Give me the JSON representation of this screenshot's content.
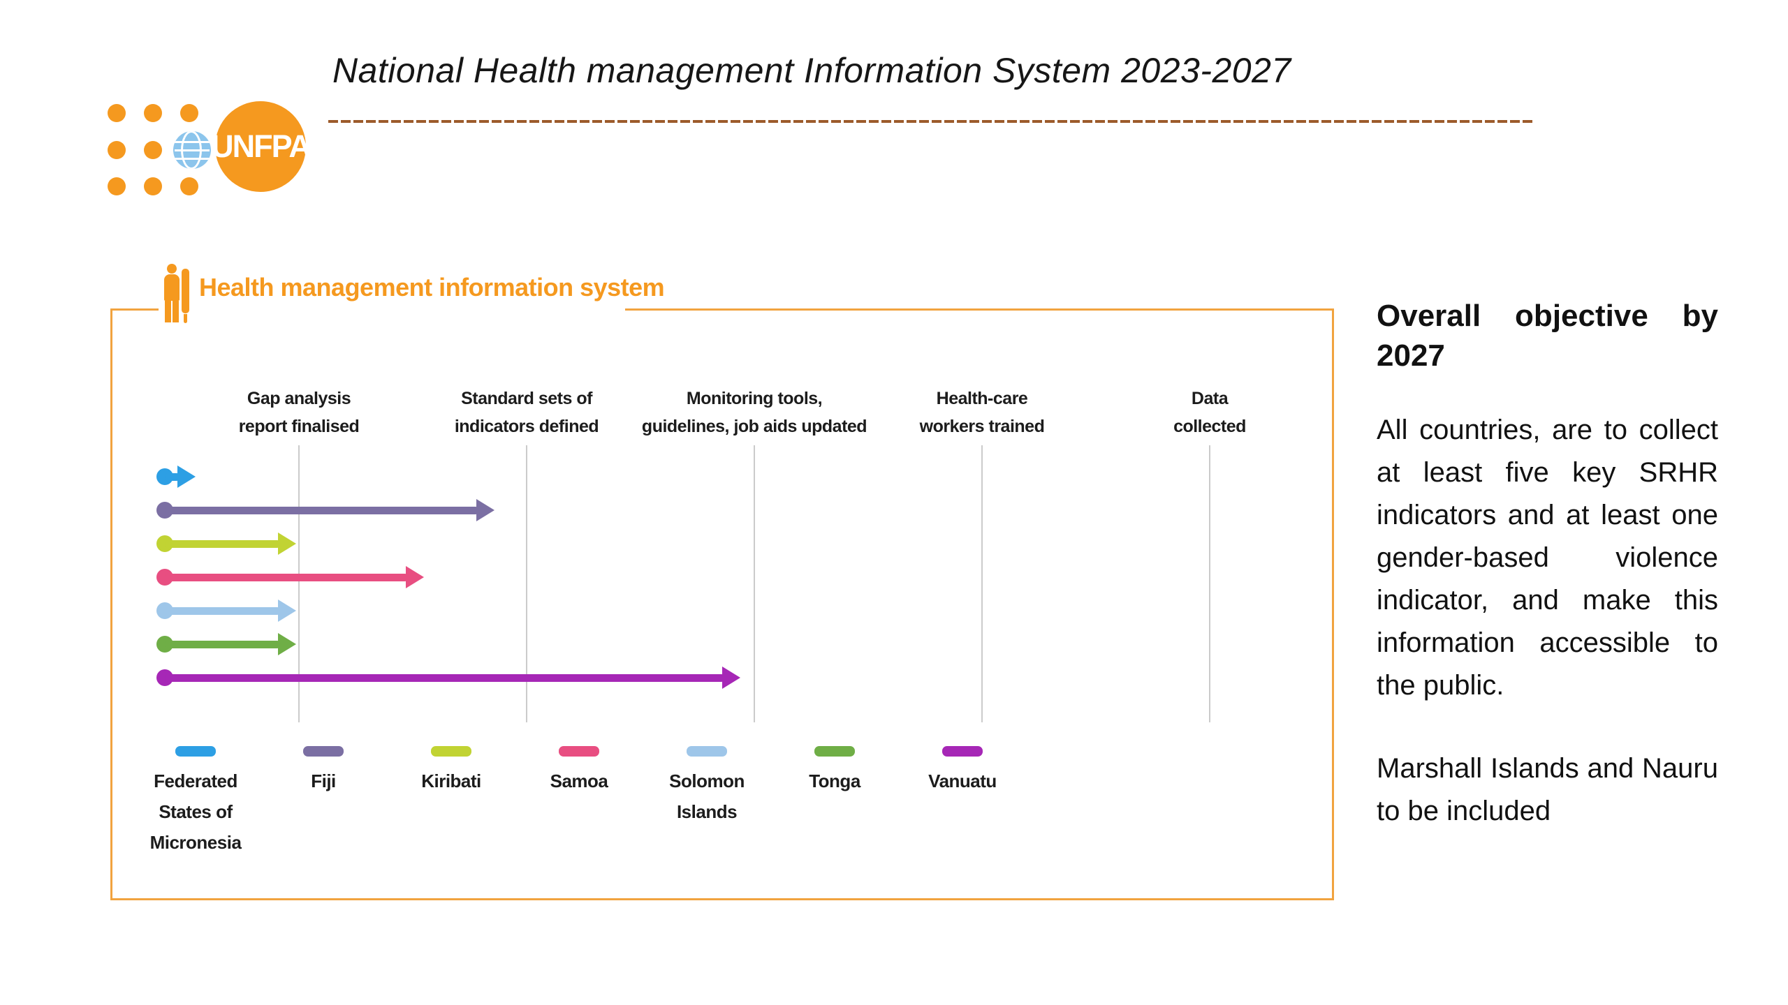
{
  "slide": {
    "title": "National Health management Information System 2023-2027"
  },
  "logo": {
    "text": "UNFPA"
  },
  "chart_data": {
    "type": "timeline-arrows",
    "title": "Health management information system",
    "milestones": [
      "Gap analysis\nreport finalised",
      "Standard sets of\nindicators defined",
      "Monitoring tools,\nguidelines, job aids updated",
      "Health-care\nworkers trained",
      "Data\ncollected"
    ],
    "series": [
      {
        "name": "Federated States of Micronesia",
        "color": "#2D9FE4",
        "progress": 0.23
      },
      {
        "name": "Fiji",
        "color": "#7B6FA3",
        "progress": 1.86
      },
      {
        "name": "Kiribati",
        "color": "#C1D333",
        "progress": 0.98
      },
      {
        "name": "Samoa",
        "color": "#E84E81",
        "progress": 1.55
      },
      {
        "name": "Solomon Islands",
        "color": "#9EC6E9",
        "progress": 0.98
      },
      {
        "name": "Tonga",
        "color": "#6FAE46",
        "progress": 0.98
      },
      {
        "name": "Vanuatu",
        "color": "#A627B6",
        "progress": 2.94
      }
    ],
    "x_axis": {
      "min": 0,
      "max": 5,
      "unit": "milestones reached"
    },
    "grid": true,
    "legend_position": "bottom",
    "accent_color": "#F5991F"
  },
  "objective": {
    "heading": "Overall objective by 2027",
    "body": "All countries, are to collect at least five key SRHR indicators and at least one gender-based violence indicator, and make this information accessible to the public.",
    "note": "Marshall Islands and Nauru to be included"
  }
}
